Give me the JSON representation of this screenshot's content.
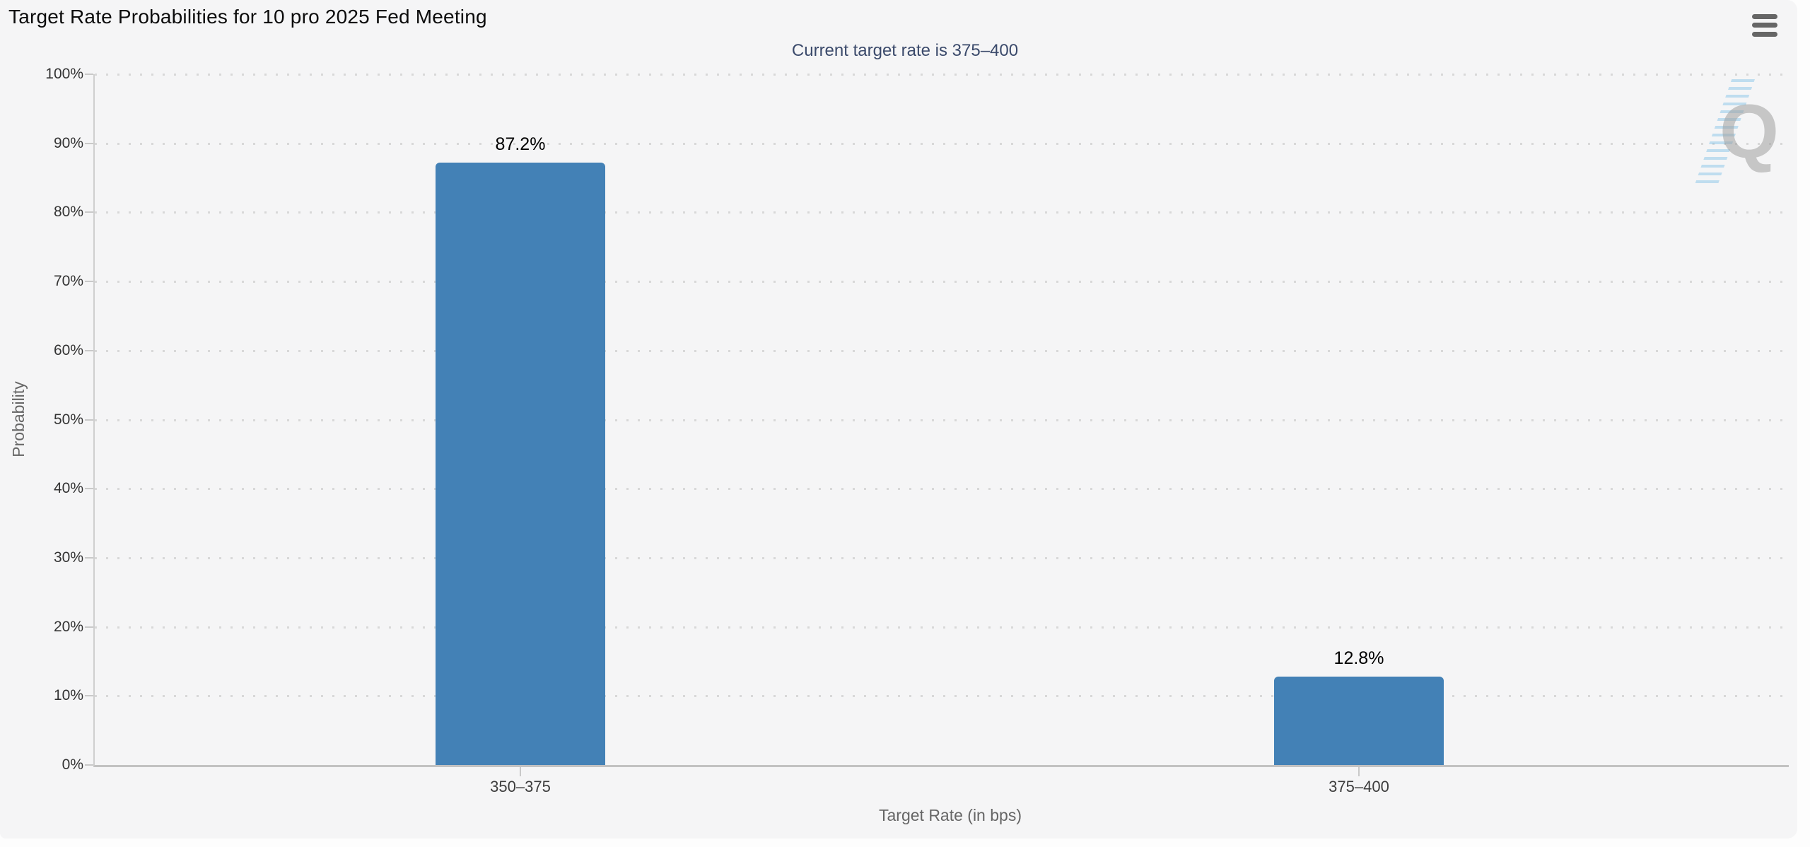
{
  "chart_data": {
    "type": "bar",
    "title": "Target Rate Probabilities for 10 pro 2025 Fed Meeting",
    "subtitle": "Current target rate is 375–400",
    "categories": [
      "350–375",
      "375–400"
    ],
    "values": [
      87.2,
      12.8
    ],
    "value_labels": [
      "87.2%",
      "12.8%"
    ],
    "xlabel": "Target Rate (in bps)",
    "ylabel": "Probability",
    "ylim": [
      0,
      100
    ],
    "ytick_step": 10,
    "ytick_suffix": "%",
    "grid": "horizontal-dotted",
    "legend": "none",
    "bar_color": "#4381b6"
  },
  "watermark": {
    "letter": "Q"
  },
  "colors": {
    "background": "#f5f5f6",
    "page": "#fdfdfd",
    "bar": "#4381b6",
    "title": "#0c0c0c",
    "subtitle": "#3b4a6b",
    "axis_title": "#666666",
    "tick_label": "#333333",
    "grid_dot": "#d8d8d8",
    "axis_line": "#c9c9c9",
    "menu_icon": "#666666"
  }
}
